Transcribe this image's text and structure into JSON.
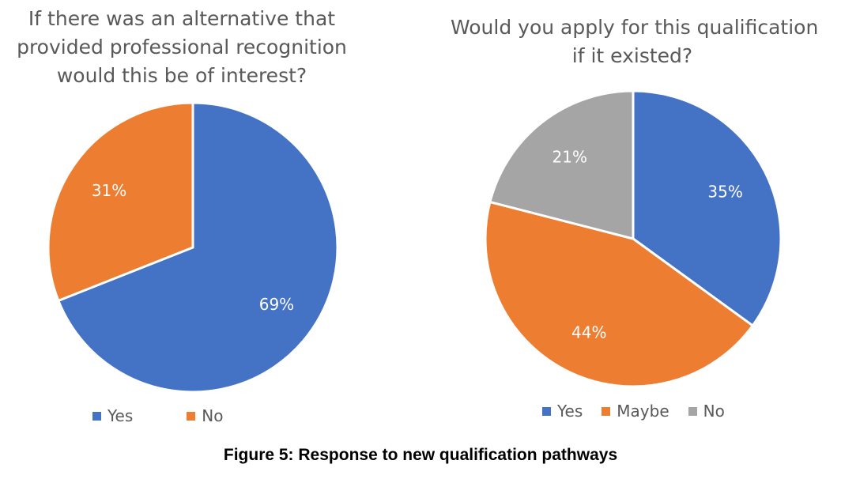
{
  "caption": "Figure 5: Response to new qualification pathways",
  "chart_data": [
    {
      "type": "pie",
      "title_lines": [
        "If there was an alternative that",
        "provided professional recognition",
        "would this be of interest?"
      ],
      "categories": [
        "Yes",
        "No"
      ],
      "values": [
        69,
        31
      ],
      "labels": [
        "69%",
        "31%"
      ],
      "colors": [
        "#4472C4",
        "#ED7D31"
      ],
      "legend": "bottom"
    },
    {
      "type": "pie",
      "title_lines": [
        "Would you apply for this qualification",
        "if it existed?"
      ],
      "categories": [
        "Yes",
        "Maybe",
        "No"
      ],
      "values": [
        35,
        44,
        21
      ],
      "labels": [
        "35%",
        "44%",
        "21%"
      ],
      "colors": [
        "#4472C4",
        "#ED7D31",
        "#A5A5A5"
      ],
      "legend": "bottom"
    }
  ]
}
